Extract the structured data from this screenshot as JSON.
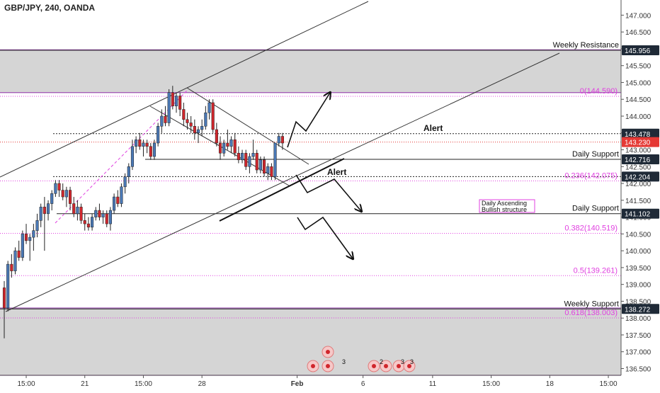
{
  "header": {
    "symbol_title": "GBP/JPY, 240, OANDA"
  },
  "colors": {
    "bull": "#4a78b5",
    "bear": "#d0262c",
    "fib": "#e040e0",
    "zone": "#d5d5d5",
    "zone_border": "#9c4fb0",
    "price_badge": "#e53935",
    "level_badge": "#1f2a37",
    "line": "#222222",
    "grid_text": "#333333"
  },
  "chart_data": {
    "type": "candlestick",
    "symbol": "GBP/JPY",
    "timeframe": "240",
    "source": "OANDA",
    "ylim": [
      136.3,
      147.45
    ],
    "y_ticks": [
      "147.000",
      "146.500",
      "146.000",
      "145.500",
      "145.000",
      "144.500",
      "144.000",
      "143.500",
      "143.000",
      "142.500",
      "142.000",
      "141.500",
      "141.000",
      "140.500",
      "140.000",
      "139.500",
      "139.000",
      "138.500",
      "138.000",
      "137.500",
      "137.000",
      "136.500"
    ],
    "x_tick_labels": [
      "15:00",
      "21",
      "15:00",
      "28",
      "Feb",
      "6",
      "11",
      "15:00",
      "18",
      "15:00"
    ],
    "x_tick_bars": [
      6,
      22,
      38,
      54,
      80,
      98,
      117,
      133,
      149,
      165
    ],
    "candles": [
      {
        "o": 138.9,
        "h": 139.1,
        "l": 137.4,
        "c": 138.3
      },
      {
        "o": 138.3,
        "h": 139.7,
        "l": 138.2,
        "c": 139.6
      },
      {
        "o": 139.6,
        "h": 139.9,
        "l": 139.2,
        "c": 139.4
      },
      {
        "o": 139.4,
        "h": 140.1,
        "l": 139.3,
        "c": 140.0
      },
      {
        "o": 140.0,
        "h": 140.3,
        "l": 139.7,
        "c": 139.8
      },
      {
        "o": 139.8,
        "h": 140.6,
        "l": 139.7,
        "c": 140.5
      },
      {
        "o": 140.5,
        "h": 140.8,
        "l": 140.2,
        "c": 140.3
      },
      {
        "o": 140.3,
        "h": 140.5,
        "l": 139.7,
        "c": 140.4
      },
      {
        "o": 140.4,
        "h": 140.8,
        "l": 140.0,
        "c": 140.6
      },
      {
        "o": 140.6,
        "h": 141.1,
        "l": 140.4,
        "c": 140.9
      },
      {
        "o": 140.9,
        "h": 141.4,
        "l": 140.7,
        "c": 141.3
      },
      {
        "o": 141.3,
        "h": 141.6,
        "l": 140.0,
        "c": 141.1
      },
      {
        "o": 141.1,
        "h": 141.5,
        "l": 140.9,
        "c": 141.4
      },
      {
        "o": 141.4,
        "h": 141.8,
        "l": 141.2,
        "c": 141.7
      },
      {
        "o": 141.7,
        "h": 142.1,
        "l": 141.6,
        "c": 142.0
      },
      {
        "o": 142.0,
        "h": 142.1,
        "l": 141.6,
        "c": 141.8
      },
      {
        "o": 141.8,
        "h": 142.0,
        "l": 141.5,
        "c": 141.6
      },
      {
        "o": 141.6,
        "h": 141.9,
        "l": 141.3,
        "c": 141.8
      },
      {
        "o": 141.8,
        "h": 141.9,
        "l": 141.2,
        "c": 141.4
      },
      {
        "o": 141.4,
        "h": 141.6,
        "l": 141.0,
        "c": 141.1
      },
      {
        "o": 141.1,
        "h": 141.5,
        "l": 140.9,
        "c": 141.3
      },
      {
        "o": 141.3,
        "h": 141.4,
        "l": 140.8,
        "c": 140.9
      },
      {
        "o": 140.9,
        "h": 141.1,
        "l": 140.6,
        "c": 140.8
      },
      {
        "o": 140.8,
        "h": 141.0,
        "l": 140.6,
        "c": 140.7
      },
      {
        "o": 140.7,
        "h": 141.1,
        "l": 140.6,
        "c": 141.0
      },
      {
        "o": 141.0,
        "h": 141.3,
        "l": 140.9,
        "c": 141.2
      },
      {
        "o": 141.2,
        "h": 141.4,
        "l": 140.9,
        "c": 141.0
      },
      {
        "o": 141.0,
        "h": 141.2,
        "l": 140.8,
        "c": 141.1
      },
      {
        "o": 141.1,
        "h": 141.2,
        "l": 140.7,
        "c": 140.8
      },
      {
        "o": 140.8,
        "h": 141.3,
        "l": 140.6,
        "c": 141.2
      },
      {
        "o": 141.2,
        "h": 141.7,
        "l": 141.1,
        "c": 141.6
      },
      {
        "o": 141.6,
        "h": 141.8,
        "l": 141.3,
        "c": 141.4
      },
      {
        "o": 141.4,
        "h": 142.0,
        "l": 141.3,
        "c": 141.9
      },
      {
        "o": 141.9,
        "h": 142.3,
        "l": 141.7,
        "c": 142.2
      },
      {
        "o": 142.2,
        "h": 142.6,
        "l": 142.0,
        "c": 142.5
      },
      {
        "o": 142.5,
        "h": 143.3,
        "l": 142.4,
        "c": 143.1
      },
      {
        "o": 143.1,
        "h": 143.4,
        "l": 142.9,
        "c": 143.3
      },
      {
        "o": 143.3,
        "h": 143.5,
        "l": 143.0,
        "c": 143.1
      },
      {
        "o": 143.1,
        "h": 143.3,
        "l": 142.8,
        "c": 143.2
      },
      {
        "o": 143.2,
        "h": 143.3,
        "l": 142.9,
        "c": 143.1
      },
      {
        "o": 143.1,
        "h": 143.2,
        "l": 142.7,
        "c": 142.8
      },
      {
        "o": 142.8,
        "h": 143.3,
        "l": 142.7,
        "c": 143.2
      },
      {
        "o": 143.2,
        "h": 143.8,
        "l": 143.1,
        "c": 143.7
      },
      {
        "o": 143.7,
        "h": 144.2,
        "l": 143.5,
        "c": 144.0
      },
      {
        "o": 144.0,
        "h": 144.3,
        "l": 143.7,
        "c": 143.8
      },
      {
        "o": 143.8,
        "h": 144.8,
        "l": 143.7,
        "c": 144.7
      },
      {
        "o": 144.7,
        "h": 144.9,
        "l": 144.2,
        "c": 144.3
      },
      {
        "o": 144.3,
        "h": 144.7,
        "l": 144.1,
        "c": 144.6
      },
      {
        "o": 144.6,
        "h": 144.7,
        "l": 144.0,
        "c": 144.2
      },
      {
        "o": 144.2,
        "h": 144.4,
        "l": 143.7,
        "c": 143.9
      },
      {
        "o": 143.9,
        "h": 144.1,
        "l": 143.6,
        "c": 143.8
      },
      {
        "o": 143.8,
        "h": 144.0,
        "l": 143.5,
        "c": 143.7
      },
      {
        "o": 143.7,
        "h": 143.9,
        "l": 143.3,
        "c": 143.5
      },
      {
        "o": 143.5,
        "h": 143.7,
        "l": 143.2,
        "c": 143.6
      },
      {
        "o": 143.6,
        "h": 143.9,
        "l": 143.4,
        "c": 143.7
      },
      {
        "o": 143.7,
        "h": 144.3,
        "l": 143.6,
        "c": 144.1
      },
      {
        "o": 144.1,
        "h": 144.5,
        "l": 143.9,
        "c": 144.4
      },
      {
        "o": 144.4,
        "h": 144.5,
        "l": 143.5,
        "c": 143.6
      },
      {
        "o": 143.6,
        "h": 143.8,
        "l": 143.1,
        "c": 143.2
      },
      {
        "o": 143.2,
        "h": 143.4,
        "l": 142.7,
        "c": 142.9
      },
      {
        "o": 142.9,
        "h": 143.3,
        "l": 142.8,
        "c": 143.2
      },
      {
        "o": 143.2,
        "h": 143.6,
        "l": 143.0,
        "c": 143.1
      },
      {
        "o": 143.1,
        "h": 143.4,
        "l": 142.9,
        "c": 143.3
      },
      {
        "o": 143.3,
        "h": 143.5,
        "l": 142.8,
        "c": 142.9
      },
      {
        "o": 142.9,
        "h": 143.1,
        "l": 142.6,
        "c": 142.7
      },
      {
        "o": 142.7,
        "h": 143.0,
        "l": 142.6,
        "c": 142.9
      },
      {
        "o": 142.9,
        "h": 143.0,
        "l": 142.4,
        "c": 142.5
      },
      {
        "o": 142.5,
        "h": 142.9,
        "l": 142.3,
        "c": 142.8
      },
      {
        "o": 142.8,
        "h": 143.3,
        "l": 142.7,
        "c": 142.9
      },
      {
        "o": 142.9,
        "h": 143.0,
        "l": 142.3,
        "c": 142.4
      },
      {
        "o": 142.4,
        "h": 142.8,
        "l": 142.3,
        "c": 142.7
      },
      {
        "o": 142.7,
        "h": 142.8,
        "l": 142.2,
        "c": 142.3
      },
      {
        "o": 142.3,
        "h": 142.6,
        "l": 142.1,
        "c": 142.5
      },
      {
        "o": 142.5,
        "h": 142.6,
        "l": 142.1,
        "c": 142.2
      },
      {
        "o": 142.2,
        "h": 143.2,
        "l": 142.1,
        "c": 143.2
      },
      {
        "o": 143.2,
        "h": 143.5,
        "l": 143.1,
        "c": 143.4
      },
      {
        "o": 143.4,
        "h": 143.5,
        "l": 143.0,
        "c": 143.2
      }
    ],
    "zones": [
      {
        "name": "weekly-resistance-zone",
        "from": 144.7,
        "to": 145.97
      },
      {
        "name": "weekly-support-zone",
        "from": 136.3,
        "to": 138.3
      }
    ],
    "levels": [
      {
        "price": 145.956,
        "label": "Weekly Resistance",
        "badge": "145.956",
        "style": "solid"
      },
      {
        "price": 143.478,
        "label": "",
        "badge": "143.478",
        "style": "dotted"
      },
      {
        "price": 143.23,
        "label": "",
        "badge": "143.230",
        "style": "current"
      },
      {
        "price": 142.716,
        "label": "Daily Support",
        "badge": "142.716",
        "style": "solid"
      },
      {
        "price": 142.204,
        "label": "",
        "badge": "142.204",
        "style": "dotted"
      },
      {
        "price": 141.102,
        "label": "Daily Support",
        "badge": "141.102",
        "style": "solid"
      },
      {
        "price": 138.272,
        "label": "Weekly Support",
        "badge": "138.272",
        "style": "solid"
      }
    ],
    "fib_levels": [
      {
        "price": 144.59,
        "label": "0(144.590)"
      },
      {
        "price": 142.075,
        "label": "0.236(142.075)"
      },
      {
        "price": 140.519,
        "label": "0.382(140.519)"
      },
      {
        "price": 139.261,
        "label": "0.5(139.261)"
      },
      {
        "price": 138.003,
        "label": "0.618(138.003)"
      }
    ],
    "annotations": {
      "alert_upper": "Alert",
      "alert_lower": "Alert",
      "structure_box": [
        "Daily Ascending",
        "Bullish structure"
      ]
    },
    "event_markers": [
      "3",
      "2",
      "3",
      "3"
    ]
  }
}
